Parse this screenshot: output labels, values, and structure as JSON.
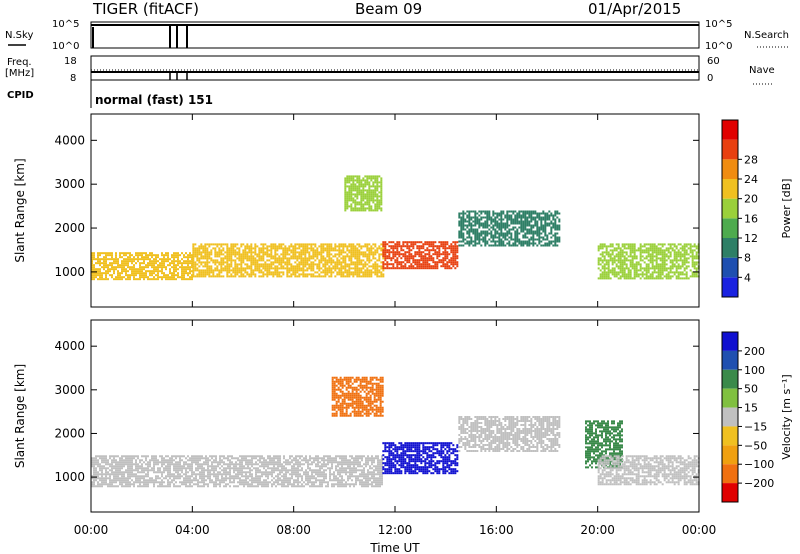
{
  "header": {
    "radar": "TIGER (fitACF)",
    "beam": "Beam 09",
    "date": "01/Apr/2015"
  },
  "summary_panels": {
    "nsky_label": "N.Sky",
    "nsearch_label": "N.Search",
    "nsky_ticks": [
      "10^5",
      "10^0"
    ],
    "nsearch_ticks": [
      "10^5",
      "10^0"
    ],
    "freq_label_line1": "Freq.",
    "freq_label_line2": "[MHz]",
    "freq_ticks": [
      "18",
      "8"
    ],
    "nave_label": "Nave",
    "nave_ticks": [
      "60",
      "0"
    ],
    "cpid_label": "CPID",
    "cpid_value": "normal (fast) 151"
  },
  "chart_data": [
    {
      "type": "heatmap",
      "name": "power-panel",
      "ylabel": "Slant Range [km]",
      "xlabel": "",
      "ylim": [
        200,
        4600
      ],
      "yticks": [
        "1000",
        "2000",
        "3000",
        "4000"
      ],
      "xlim_hours": [
        0,
        24
      ],
      "colorbar": {
        "label": "Power [dB]",
        "ticks": [
          "4",
          "8",
          "12",
          "16",
          "20",
          "24",
          "28"
        ],
        "colors": [
          "#1a22e0",
          "#1e4fb0",
          "#2e7f66",
          "#4eab4e",
          "#9ad03a",
          "#f0c020",
          "#f08c10",
          "#e84010",
          "#e00000"
        ]
      },
      "bands": [
        {
          "x": [
            0.0,
            4.0
          ],
          "y": [
            850,
            1450
          ],
          "value": "20"
        },
        {
          "x": [
            4.0,
            11.5
          ],
          "y": [
            900,
            1650
          ],
          "value": "20"
        },
        {
          "x": [
            11.5,
            14.5
          ],
          "y": [
            1100,
            1700
          ],
          "value": "28"
        },
        {
          "x": [
            14.5,
            18.5
          ],
          "y": [
            1600,
            2400
          ],
          "value": "8"
        },
        {
          "x": [
            20.0,
            24.0
          ],
          "y": [
            850,
            1650
          ],
          "value": "16"
        },
        {
          "x": [
            10.0,
            11.5
          ],
          "y": [
            2400,
            3200
          ],
          "value": "16"
        }
      ]
    },
    {
      "type": "heatmap",
      "name": "velocity-panel",
      "ylabel": "Slant Range [km]",
      "xlabel": "Time UT",
      "ylim": [
        200,
        4600
      ],
      "yticks": [
        "1000",
        "2000",
        "3000",
        "4000"
      ],
      "xticks": [
        "00:00",
        "04:00",
        "08:00",
        "12:00",
        "16:00",
        "20:00",
        "00:00"
      ],
      "xlim_hours": [
        0,
        24
      ],
      "colorbar": {
        "label": "Velocity [m s⁻¹]",
        "ticks": [
          "200",
          "100",
          "50",
          "15",
          "−15",
          "−50",
          "−100",
          "−200"
        ],
        "colors": [
          "#1010d0",
          "#2050b0",
          "#3a8a4a",
          "#80c040",
          "#c0c0c0",
          "#f0c020",
          "#f0a010",
          "#f07010",
          "#e00000"
        ]
      },
      "bands": [
        {
          "x": [
            0.0,
            11.5
          ],
          "y": [
            800,
            1500
          ],
          "value": "0"
        },
        {
          "x": [
            11.5,
            14.5
          ],
          "y": [
            1100,
            1800
          ],
          "value": "200"
        },
        {
          "x": [
            14.5,
            18.5
          ],
          "y": [
            1600,
            2400
          ],
          "value": "0"
        },
        {
          "x": [
            19.5,
            21.0
          ],
          "y": [
            1200,
            2300
          ],
          "value": "50"
        },
        {
          "x": [
            20.0,
            24.0
          ],
          "y": [
            850,
            1500
          ],
          "value": "0"
        },
        {
          "x": [
            9.5,
            11.5
          ],
          "y": [
            2400,
            3300
          ],
          "value": "-200"
        }
      ]
    }
  ]
}
